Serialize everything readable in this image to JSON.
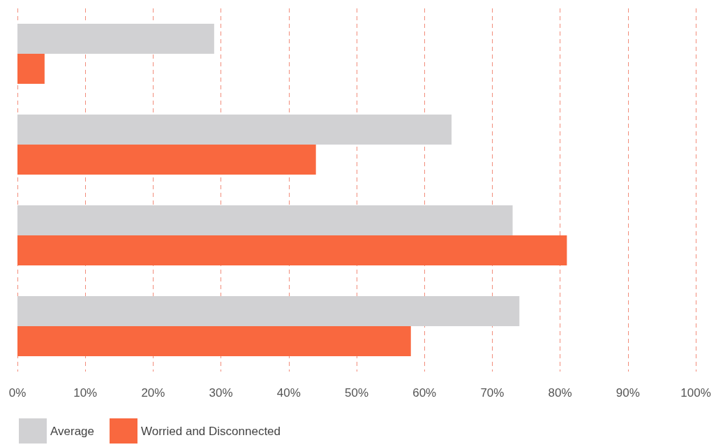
{
  "chart_data": {
    "type": "bar",
    "orientation": "horizontal",
    "categories": [
      null,
      null,
      null,
      null
    ],
    "series": [
      {
        "name": "Average",
        "color": "#d1d1d3",
        "values": [
          29,
          64,
          73,
          74
        ]
      },
      {
        "name": "Worried and Disconnected",
        "color": "#f9683f",
        "values": [
          4,
          44,
          81,
          58
        ]
      }
    ],
    "xlim": [
      0,
      100
    ],
    "xticks": [
      {
        "value": 0,
        "label": "0%"
      },
      {
        "value": 10,
        "label": "10%"
      },
      {
        "value": 20,
        "label": "20%"
      },
      {
        "value": 30,
        "label": "30%"
      },
      {
        "value": 40,
        "label": "40%"
      },
      {
        "value": 50,
        "label": "50%"
      },
      {
        "value": 60,
        "label": "60%"
      },
      {
        "value": 70,
        "label": "70%"
      },
      {
        "value": 80,
        "label": "80%"
      },
      {
        "value": 90,
        "label": "90%"
      },
      {
        "value": 100,
        "label": "100%"
      }
    ],
    "grid": "x",
    "legend": "bottom left"
  }
}
